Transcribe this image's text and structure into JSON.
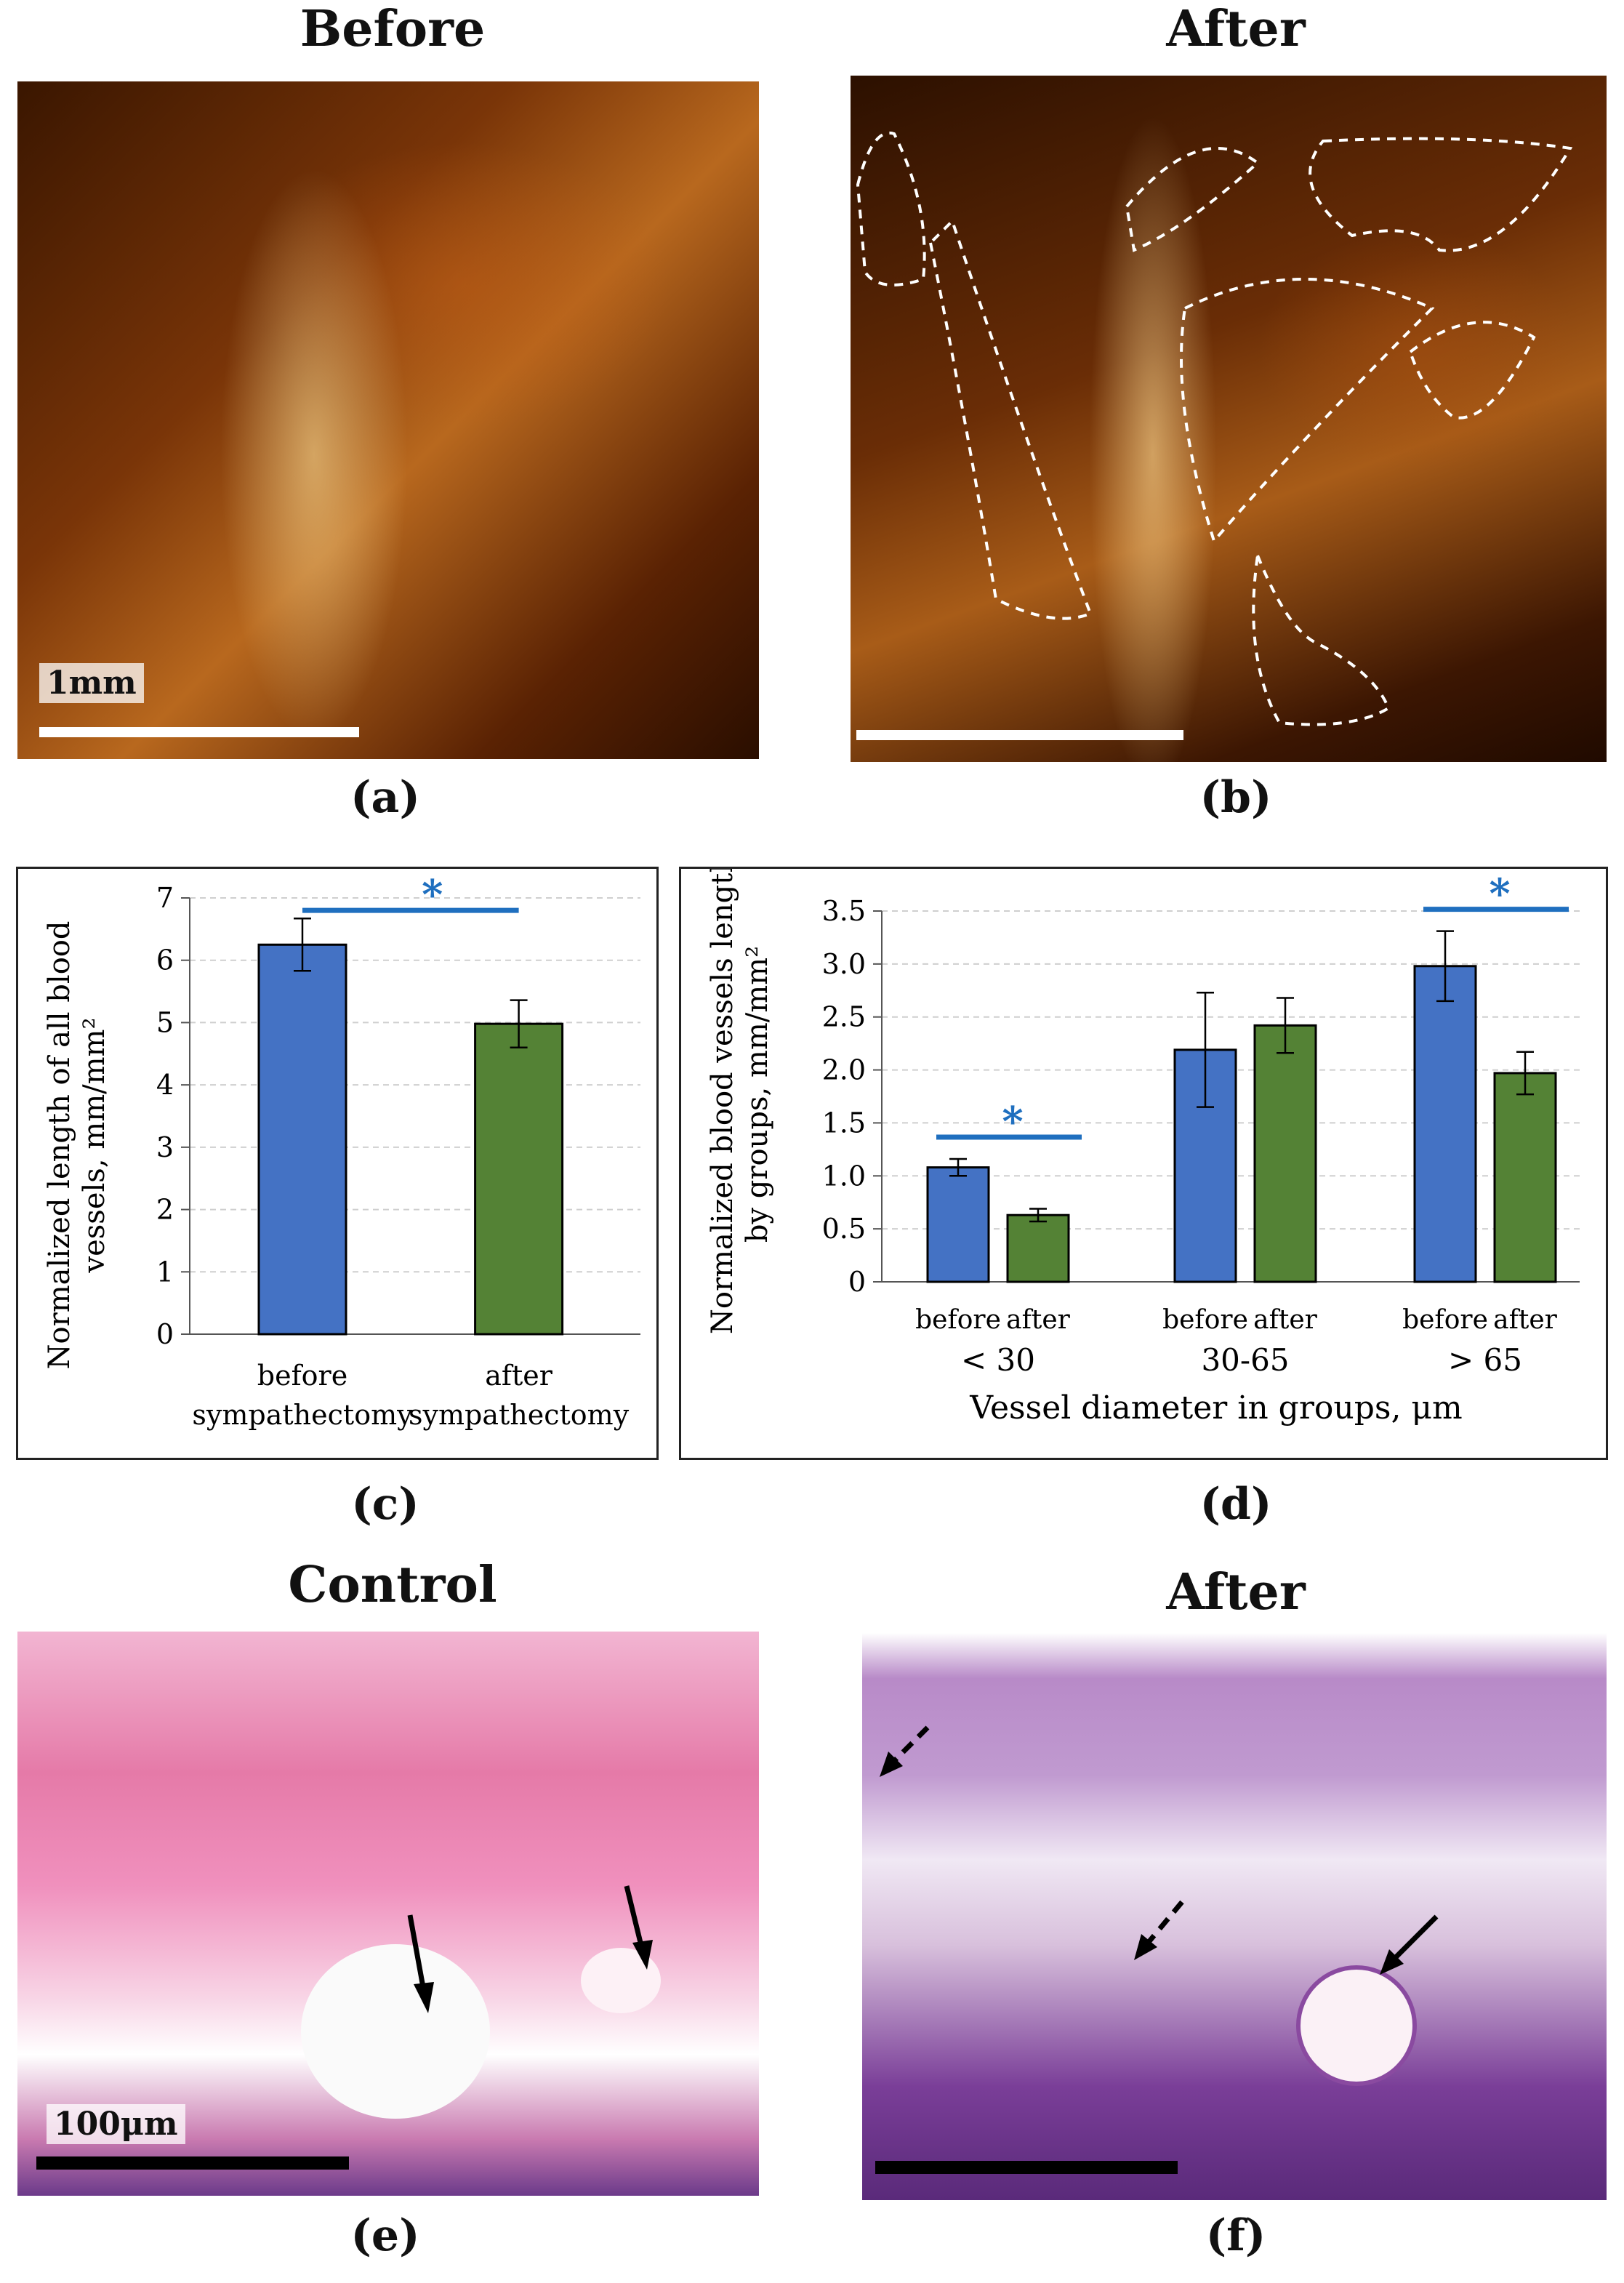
{
  "panels": {
    "a": {
      "title": "Before",
      "label": "(a)",
      "scale_label": "1mm"
    },
    "b": {
      "title": "After",
      "label": "(b)"
    },
    "c": {
      "label": "(c)"
    },
    "d": {
      "label": "(d)"
    },
    "e": {
      "title": "Control",
      "label": "(e)",
      "scale_label": "100μm"
    },
    "f": {
      "title": "After",
      "label": "(f)"
    }
  },
  "colors": {
    "before": "#4472c4",
    "after": "#548235",
    "significance": "#1f6fbf"
  },
  "chart_data": [
    {
      "id": "c",
      "type": "bar",
      "categories": [
        "before sympathectomy",
        "after sympathectomy"
      ],
      "category_lines": [
        [
          "before",
          "sympathectomy"
        ],
        [
          "after",
          "sympathectomy"
        ]
      ],
      "values": [
        6.25,
        4.98
      ],
      "errors": [
        0.42,
        0.38
      ],
      "ylabel_lines": [
        "Normalized length of all blood",
        "vessels, mm/mm²"
      ],
      "ylim": [
        0,
        7
      ],
      "yticks": [
        "0",
        "1",
        "2",
        "3",
        "4",
        "5",
        "6",
        "7"
      ],
      "significance": [
        {
          "between": [
            0,
            1
          ],
          "symbol": "*"
        }
      ],
      "grid": true
    },
    {
      "id": "d",
      "type": "bar",
      "groups": [
        "< 30",
        "30-65",
        "> 65"
      ],
      "bar_labels": [
        "before",
        "after"
      ],
      "series": [
        {
          "values": [
            1.08,
            2.19,
            2.98
          ],
          "errors": [
            0.08,
            0.54,
            0.33
          ]
        },
        {
          "values": [
            0.63,
            2.42,
            1.97
          ],
          "errors": [
            0.06,
            0.26,
            0.2
          ]
        }
      ],
      "ylabel_lines": [
        "Normalized blood vessels length",
        "by groups, mm/mm²"
      ],
      "xlabel": "Vessel diameter in groups, μm",
      "ylim": [
        0,
        3.5
      ],
      "yticks": [
        "0",
        "0.5",
        "1.0",
        "1.5",
        "2.0",
        "2.5",
        "3.0",
        "3.5"
      ],
      "significance": [
        {
          "group": 0,
          "symbol": "*"
        },
        {
          "group": 2,
          "symbol": "*"
        }
      ],
      "grid": true
    }
  ]
}
